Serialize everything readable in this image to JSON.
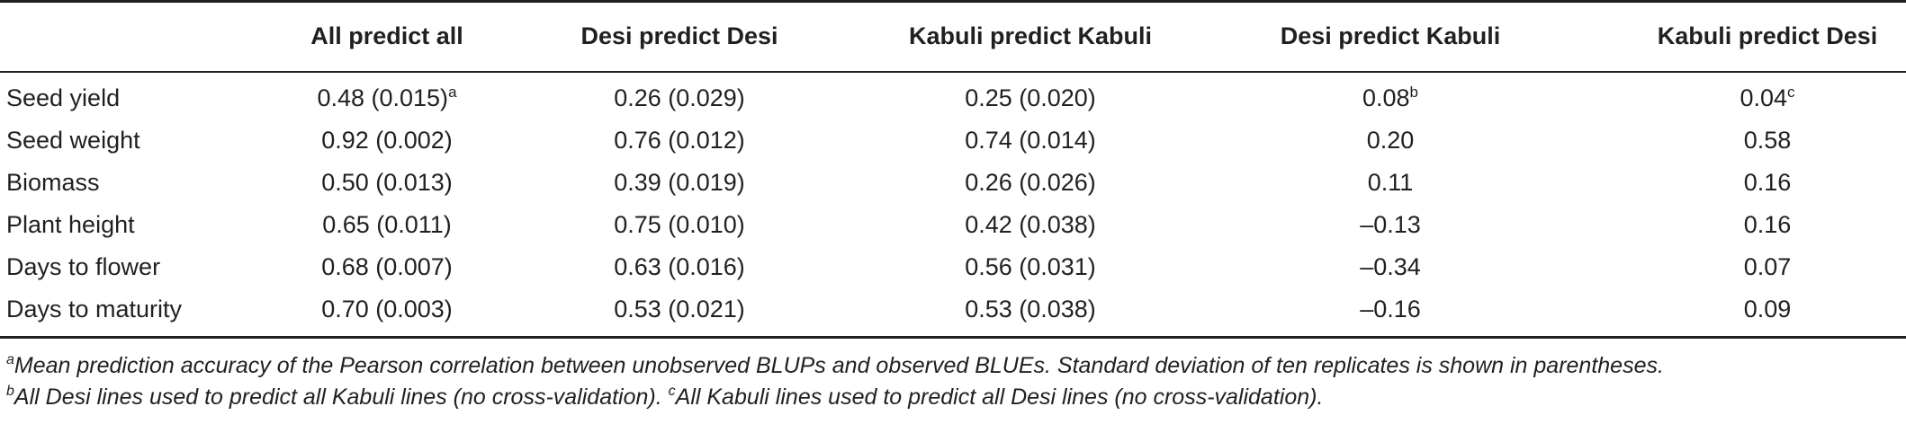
{
  "table": {
    "headers": [
      "",
      "All predict all",
      "Desi predict Desi",
      "Kabuli predict Kabuli",
      "Desi predict Kabuli",
      "Kabuli predict Desi"
    ],
    "rows": [
      {
        "trait": "Seed yield",
        "values": [
          "0.48 (0.015)",
          "0.26 (0.029)",
          "0.25 (0.020)",
          "0.08",
          "0.04"
        ],
        "sups": [
          "a",
          "",
          "",
          "b",
          "c"
        ]
      },
      {
        "trait": "Seed weight",
        "values": [
          "0.92 (0.002)",
          "0.76 (0.012)",
          "0.74 (0.014)",
          "0.20",
          "0.58"
        ],
        "sups": [
          "",
          "",
          "",
          "",
          ""
        ]
      },
      {
        "trait": "Biomass",
        "values": [
          "0.50 (0.013)",
          "0.39 (0.019)",
          "0.26 (0.026)",
          "0.11",
          "0.16"
        ],
        "sups": [
          "",
          "",
          "",
          "",
          ""
        ]
      },
      {
        "trait": "Plant height",
        "values": [
          "0.65 (0.011)",
          "0.75 (0.010)",
          "0.42 (0.038)",
          "–0.13",
          "0.16"
        ],
        "sups": [
          "",
          "",
          "",
          "",
          ""
        ]
      },
      {
        "trait": "Days to flower",
        "values": [
          "0.68 (0.007)",
          "0.63 (0.016)",
          "0.56 (0.031)",
          "–0.34",
          "0.07"
        ],
        "sups": [
          "",
          "",
          "",
          "",
          ""
        ]
      },
      {
        "trait": "Days to maturity",
        "values": [
          "0.70 (0.003)",
          "0.53 (0.021)",
          "0.53 (0.038)",
          "–0.16",
          "0.09"
        ],
        "sups": [
          "",
          "",
          "",
          "",
          ""
        ]
      }
    ]
  },
  "footnotes": {
    "a_mark": "a",
    "a_text": "Mean prediction accuracy of the Pearson correlation between unobserved BLUPs and observed BLUEs. Standard deviation of ten replicates is shown in parentheses.",
    "b_mark": "b",
    "b_text": "All Desi lines used to predict all Kabuli lines (no cross-validation). ",
    "c_mark": "c",
    "c_text": "All Kabuli lines used to predict all Desi lines (no cross-validation)."
  }
}
